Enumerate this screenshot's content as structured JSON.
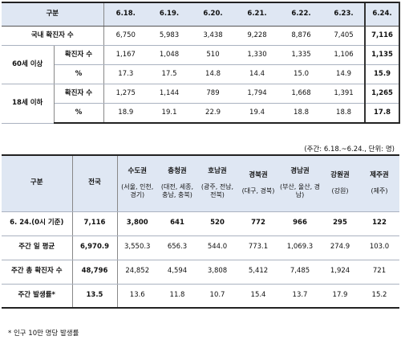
{
  "table1": {
    "header": [
      "구분",
      "6.18.",
      "6.19.",
      "6.20.",
      "6.21.",
      "6.22.",
      "6.23.",
      "6.24."
    ],
    "domestic_label": "국내 확진자 수",
    "domestic_values": [
      "6,750",
      "5,983",
      "3,438",
      "9,228",
      "8,876",
      "7,405",
      "7,116"
    ],
    "age60_label": "60세 이상",
    "age18_label": "18세 이하",
    "cases_label": "확진자 수",
    "pct_label": "%",
    "age60_cases": [
      "1,167",
      "1,048",
      "510",
      "1,330",
      "1,335",
      "1,106",
      "1,135"
    ],
    "age60_pct": [
      "17.3",
      "17.5",
      "14.8",
      "14.4",
      "15.0",
      "14.9",
      "15.9"
    ],
    "age18_cases": [
      "1,275",
      "1,144",
      "789",
      "1,794",
      "1,668",
      "1,391",
      "1,265"
    ],
    "age18_pct": [
      "18.9",
      "19.1",
      "22.9",
      "19.4",
      "18.8",
      "18.8",
      "17.8"
    ]
  },
  "note1": "(주간: 6.18.~6.24., 단위: 명)",
  "table2": {
    "corner_label": "구분",
    "national_label": "전국",
    "regions": [
      {
        "name": "수도권",
        "sub": "(서울, 인천, 경기)"
      },
      {
        "name": "충청권",
        "sub": "(대전, 세종, 충남, 충북)"
      },
      {
        "name": "호남권",
        "sub": "(광주, 전남, 전북)"
      },
      {
        "name": "경북권",
        "sub": "(대구, 경북)"
      },
      {
        "name": "경남권",
        "sub": "(부산, 울산, 경남)"
      },
      {
        "name": "강원권",
        "sub": "(강원)"
      },
      {
        "name": "제주권",
        "sub": "(제주)"
      }
    ],
    "rows": [
      {
        "label": "6. 24.(0시 기준)",
        "national": "7,116",
        "values": [
          "3,800",
          "641",
          "520",
          "772",
          "966",
          "295",
          "122"
        ],
        "bold": true
      },
      {
        "label": "주간 일 평균",
        "national": "6,970.9",
        "values": [
          "3,550.3",
          "656.3",
          "544.0",
          "773.1",
          "1,069.3",
          "274.9",
          "103.0"
        ],
        "bold": false
      },
      {
        "label": "주간 총 확진자 수",
        "national": "48,796",
        "values": [
          "24,852",
          "4,594",
          "3,808",
          "5,412",
          "7,485",
          "1,924",
          "721"
        ],
        "bold": false
      },
      {
        "label": "주간 발생률*",
        "national": "13.5",
        "values": [
          "13.6",
          "11.8",
          "10.7",
          "15.4",
          "13.7",
          "17.9",
          "15.2"
        ],
        "bold": false
      }
    ]
  },
  "footnote": "* 인구 10만 명당 발생률"
}
